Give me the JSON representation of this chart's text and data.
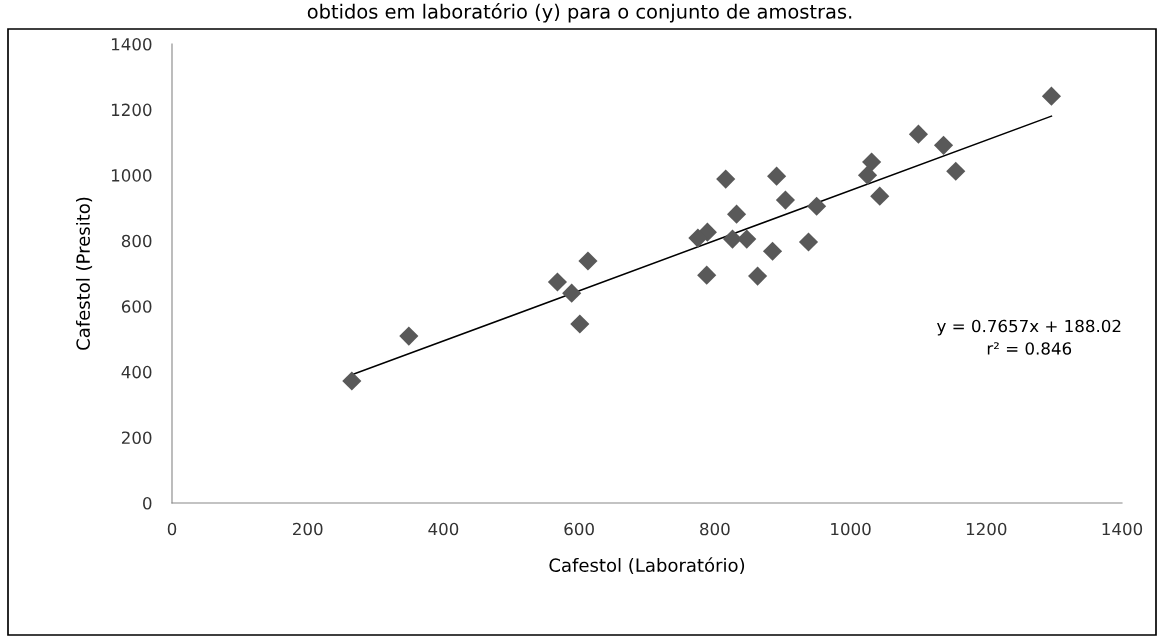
{
  "chart_data": {
    "type": "scatter",
    "title": "obtidos em laboratório (y) para o conjunto de amostras.",
    "xlabel": "Cafestol (Laboratório)",
    "ylabel": "Cafestol (Presito)",
    "series": [
      {
        "color": "#595959",
        "marker": "diamond",
        "x": [
          265,
          349,
          613,
          568,
          589,
          601,
          1296,
          1100,
          1137,
          1155,
          1031,
          1025,
          1043,
          816,
          891,
          904,
          950,
          832,
          789,
          775,
          826,
          847,
          938,
          885,
          788,
          863
        ],
        "values": [
          372,
          509,
          738,
          674,
          640,
          546,
          1241,
          1125,
          1091,
          1012,
          1040,
          1000,
          936,
          988,
          997,
          924,
          905,
          881,
          826,
          808,
          805,
          805,
          796,
          768,
          695,
          692
        ]
      },
      {
        "type": "line",
        "color": "#000000",
        "x": [
          265,
          1296
        ],
        "values": [
          391,
          1180
        ]
      }
    ],
    "annotations": [
      "y = 0.7657x + 188.02",
      "r² = 0.846"
    ],
    "xlim": [
      0,
      1400
    ],
    "ylim": [
      0,
      1400
    ],
    "xticks": [
      0,
      200,
      400,
      600,
      800,
      1000,
      1200,
      1400
    ],
    "yticks": [
      0,
      200,
      400,
      600,
      800,
      1000,
      1200,
      1400
    ],
    "grid": false,
    "legend": false
  }
}
